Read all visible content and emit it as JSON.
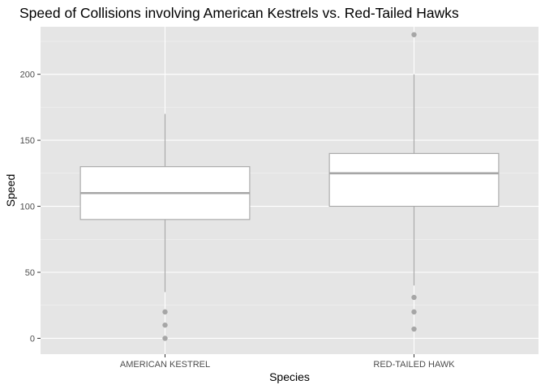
{
  "chart_data": {
    "type": "boxplot",
    "title": "Speed of Collisions involving American Kestrels vs. Red-Tailed Hawks",
    "xlabel": "Species",
    "ylabel": "Speed",
    "categories": [
      "AMERICAN KESTREL",
      "RED-TAILED HAWK"
    ],
    "ylim": [
      -12,
      236
    ],
    "yticks": [
      0,
      50,
      100,
      150,
      200
    ],
    "grid": true,
    "boxes": [
      {
        "category": "AMERICAN KESTREL",
        "whisker_low": 35,
        "q1": 90,
        "median": 110,
        "q3": 130,
        "whisker_high": 170,
        "outliers": [
          0,
          10,
          20
        ]
      },
      {
        "category": "RED-TAILED HAWK",
        "whisker_low": 40,
        "q1": 100,
        "median": 125,
        "q3": 140,
        "whisker_high": 200,
        "outliers": [
          7,
          20,
          31,
          230
        ]
      }
    ],
    "colors": {
      "panel": "#e5e5e5",
      "grid_major": "#ffffff",
      "box_stroke": "#a6a6a6",
      "box_fill": "#ffffff",
      "outlier": "#a6a6a6"
    }
  }
}
